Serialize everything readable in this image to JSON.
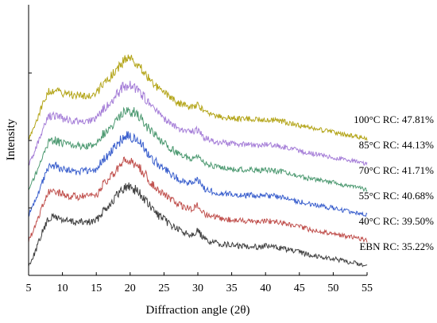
{
  "chart_data": {
    "type": "line",
    "title": "",
    "xlabel": "Diffraction angle (2θ)",
    "ylabel": "Intensity",
    "xlim": [
      5,
      55
    ],
    "xticks": [
      5,
      10,
      15,
      20,
      25,
      30,
      35,
      40,
      45,
      50,
      55
    ],
    "y_tick_labels_shown": false,
    "grid": false,
    "legend": "inline labels at right end of each curve",
    "stacked_offset": true,
    "profile_x": [
      5,
      6,
      7,
      8,
      9,
      10,
      11,
      12,
      13,
      14,
      15,
      16,
      17,
      18,
      19,
      20,
      21,
      22,
      23,
      24,
      25,
      26,
      27,
      28,
      29,
      30,
      31,
      32,
      33,
      34,
      35,
      36,
      37,
      38,
      39,
      40,
      41,
      42,
      43,
      44,
      45,
      46,
      47,
      48,
      49,
      50,
      51,
      52,
      53,
      54,
      55
    ],
    "profile_y": [
      0.0,
      0.18,
      0.42,
      0.6,
      0.62,
      0.58,
      0.56,
      0.55,
      0.55,
      0.55,
      0.57,
      0.7,
      0.78,
      0.88,
      0.98,
      1.0,
      0.95,
      0.85,
      0.74,
      0.65,
      0.58,
      0.52,
      0.46,
      0.42,
      0.4,
      0.44,
      0.33,
      0.3,
      0.28,
      0.27,
      0.26,
      0.25,
      0.25,
      0.25,
      0.24,
      0.25,
      0.24,
      0.23,
      0.21,
      0.19,
      0.17,
      0.15,
      0.13,
      0.12,
      0.1,
      0.09,
      0.07,
      0.05,
      0.04,
      0.02,
      0.0
    ],
    "series": [
      {
        "name": "EBN RC: 35.22%",
        "color": "#404040",
        "offset": 0
      },
      {
        "name": "40°C RC: 39.50%",
        "color": "#c0504d",
        "offset": 1
      },
      {
        "name": "55°C RC: 40.68%",
        "color": "#3a5fcd",
        "offset": 2
      },
      {
        "name": "70°C RC: 41.71%",
        "color": "#4e9a72",
        "offset": 3
      },
      {
        "name": "85°C RC: 44.13%",
        "color": "#a67fd8",
        "offset": 4
      },
      {
        "name": "100°C RC: 47.81%",
        "color": "#b3a417",
        "offset": 5
      }
    ]
  }
}
